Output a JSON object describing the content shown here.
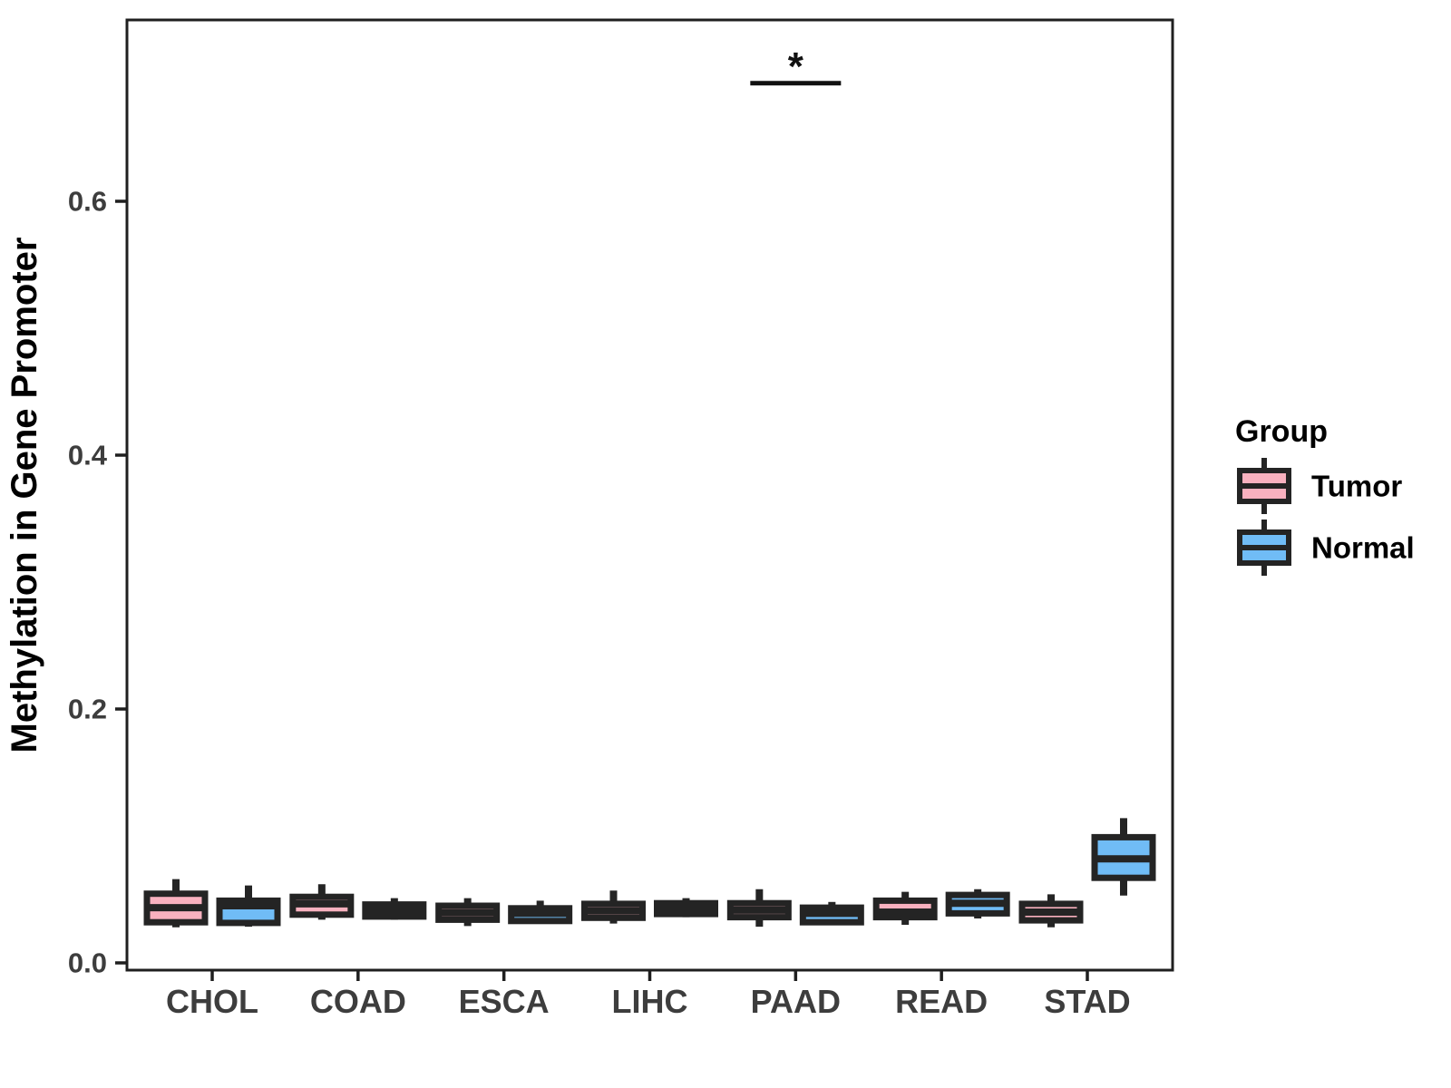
{
  "chart_data": {
    "type": "boxplot",
    "title": "",
    "xlabel": "",
    "ylabel": "Methylation in Gene Promoter",
    "categories": [
      "CHOL",
      "COAD",
      "ESCA",
      "LIHC",
      "PAAD",
      "READ",
      "STAD"
    ],
    "groups": [
      "Tumor",
      "Normal"
    ],
    "group_colors": {
      "Tumor": "#F9B1BF",
      "Normal": "#70BCF6"
    },
    "box_border_color": "#242424",
    "axis_line_color": "#1f1f1f",
    "axis_text_color": "#3d3d3d",
    "title_text_color": "#000000",
    "background_color": "#ffffff",
    "grid": "off",
    "ylim": [
      0,
      0.743
    ],
    "y_ticks": [
      {
        "value": 0.0,
        "label": "0.0"
      },
      {
        "value": 0.2,
        "label": "0.2"
      },
      {
        "value": 0.4,
        "label": "0.4"
      },
      {
        "value": 0.6,
        "label": "0.6"
      }
    ],
    "series": [
      {
        "name": "Tumor",
        "boxes": [
          {
            "category": "CHOL",
            "whisker_low": 0.028,
            "q1": 0.032,
            "median": 0.0435,
            "q3": 0.0545,
            "whisker_high": 0.066
          },
          {
            "category": "COAD",
            "whisker_low": 0.034,
            "q1": 0.038,
            "median": 0.0465,
            "q3": 0.052,
            "whisker_high": 0.062
          },
          {
            "category": "ESCA",
            "whisker_low": 0.029,
            "q1": 0.034,
            "median": 0.0395,
            "q3": 0.045,
            "whisker_high": 0.051
          },
          {
            "category": "LIHC",
            "whisker_low": 0.031,
            "q1": 0.0355,
            "median": 0.041,
            "q3": 0.0465,
            "whisker_high": 0.057
          },
          {
            "category": "PAAD",
            "whisker_low": 0.0285,
            "q1": 0.036,
            "median": 0.0415,
            "q3": 0.047,
            "whisker_high": 0.058
          },
          {
            "category": "READ",
            "whisker_low": 0.03,
            "q1": 0.036,
            "median": 0.04,
            "q3": 0.049,
            "whisker_high": 0.056
          },
          {
            "category": "STAD",
            "whisker_low": 0.028,
            "q1": 0.0335,
            "median": 0.04,
            "q3": 0.0465,
            "whisker_high": 0.054
          }
        ]
      },
      {
        "name": "Normal",
        "boxes": [
          {
            "category": "CHOL",
            "whisker_low": 0.0285,
            "q1": 0.0315,
            "median": 0.045,
            "q3": 0.049,
            "whisker_high": 0.061
          },
          {
            "category": "COAD",
            "whisker_low": 0.034,
            "q1": 0.0365,
            "median": 0.041,
            "q3": 0.046,
            "whisker_high": 0.051
          },
          {
            "category": "ESCA",
            "whisker_low": 0.0315,
            "q1": 0.033,
            "median": 0.039,
            "q3": 0.043,
            "whisker_high": 0.049
          },
          {
            "category": "LIHC",
            "whisker_low": 0.036,
            "q1": 0.0385,
            "median": 0.043,
            "q3": 0.047,
            "whisker_high": 0.051
          },
          {
            "category": "PAAD",
            "whisker_low": 0.031,
            "q1": 0.032,
            "median": 0.039,
            "q3": 0.0435,
            "whisker_high": 0.048
          },
          {
            "category": "READ",
            "whisker_low": 0.035,
            "q1": 0.039,
            "median": 0.047,
            "q3": 0.0535,
            "whisker_high": 0.058
          },
          {
            "category": "STAD",
            "whisker_low": 0.053,
            "q1": 0.067,
            "median": 0.082,
            "q3": 0.099,
            "whisker_high": 0.114
          }
        ]
      }
    ],
    "significance": {
      "category": "PAAD",
      "label": "*",
      "bar_y_value": 0.693,
      "compares": [
        "Tumor",
        "Normal"
      ]
    },
    "legend": {
      "title": "Group",
      "position": "right",
      "entries": [
        {
          "label": "Tumor",
          "color": "#F9B1BF"
        },
        {
          "label": "Normal",
          "color": "#70BCF6"
        }
      ]
    }
  }
}
